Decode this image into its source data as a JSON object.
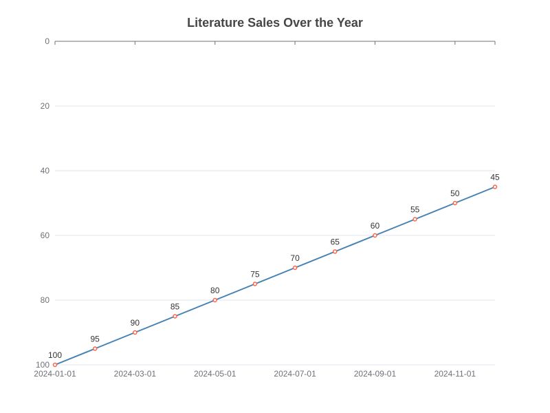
{
  "chart_data": {
    "type": "line",
    "title": "Literature Sales Over the Year",
    "x": [
      "2024-01-01",
      "2024-02-01",
      "2024-03-01",
      "2024-04-01",
      "2024-05-01",
      "2024-06-01",
      "2024-07-01",
      "2024-08-01",
      "2024-09-01",
      "2024-10-01",
      "2024-11-01",
      "2024-12-01"
    ],
    "x_tick_labels": [
      "2024-01-01",
      "2024-03-01",
      "2024-05-01",
      "2024-07-01",
      "2024-09-01",
      "2024-11-01"
    ],
    "series": [
      {
        "values": [
          100,
          95,
          90,
          85,
          80,
          75,
          70,
          65,
          60,
          55,
          50,
          45
        ],
        "line_color": "#4682b4",
        "marker_color": "#ff6347"
      }
    ],
    "y_ticks": [
      0,
      20,
      40,
      60,
      80,
      100
    ],
    "ylim": [
      0,
      100
    ],
    "y_inverted": true,
    "grid": true,
    "xlabel": "",
    "ylabel": ""
  }
}
